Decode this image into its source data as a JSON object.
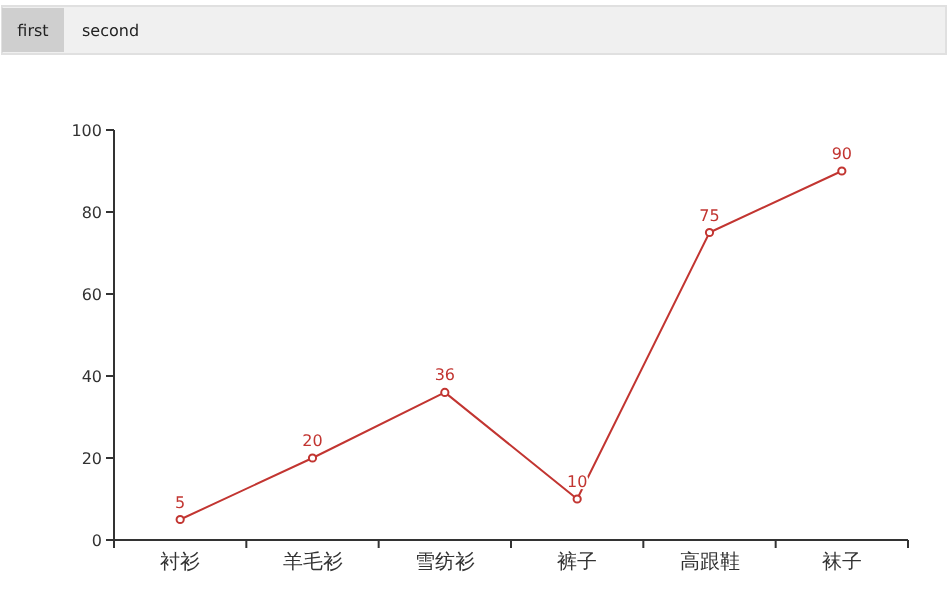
{
  "chart_data": {
    "type": "line",
    "annotations": [
      "first",
      "second"
    ],
    "categories": [
      "衬衫",
      "羊毛衫",
      "雪纺衫",
      "裤子",
      "高跟鞋",
      "袜子"
    ],
    "series": [
      {
        "color": "#c23531",
        "values": [
          5,
          20,
          36,
          10,
          75,
          90
        ]
      }
    ],
    "ylim": [
      0,
      100
    ],
    "yticks": [
      0,
      20,
      40,
      60,
      80,
      100
    ],
    "grid": false,
    "marker": "circle",
    "line_style": "solid",
    "data_labels": true
  }
}
